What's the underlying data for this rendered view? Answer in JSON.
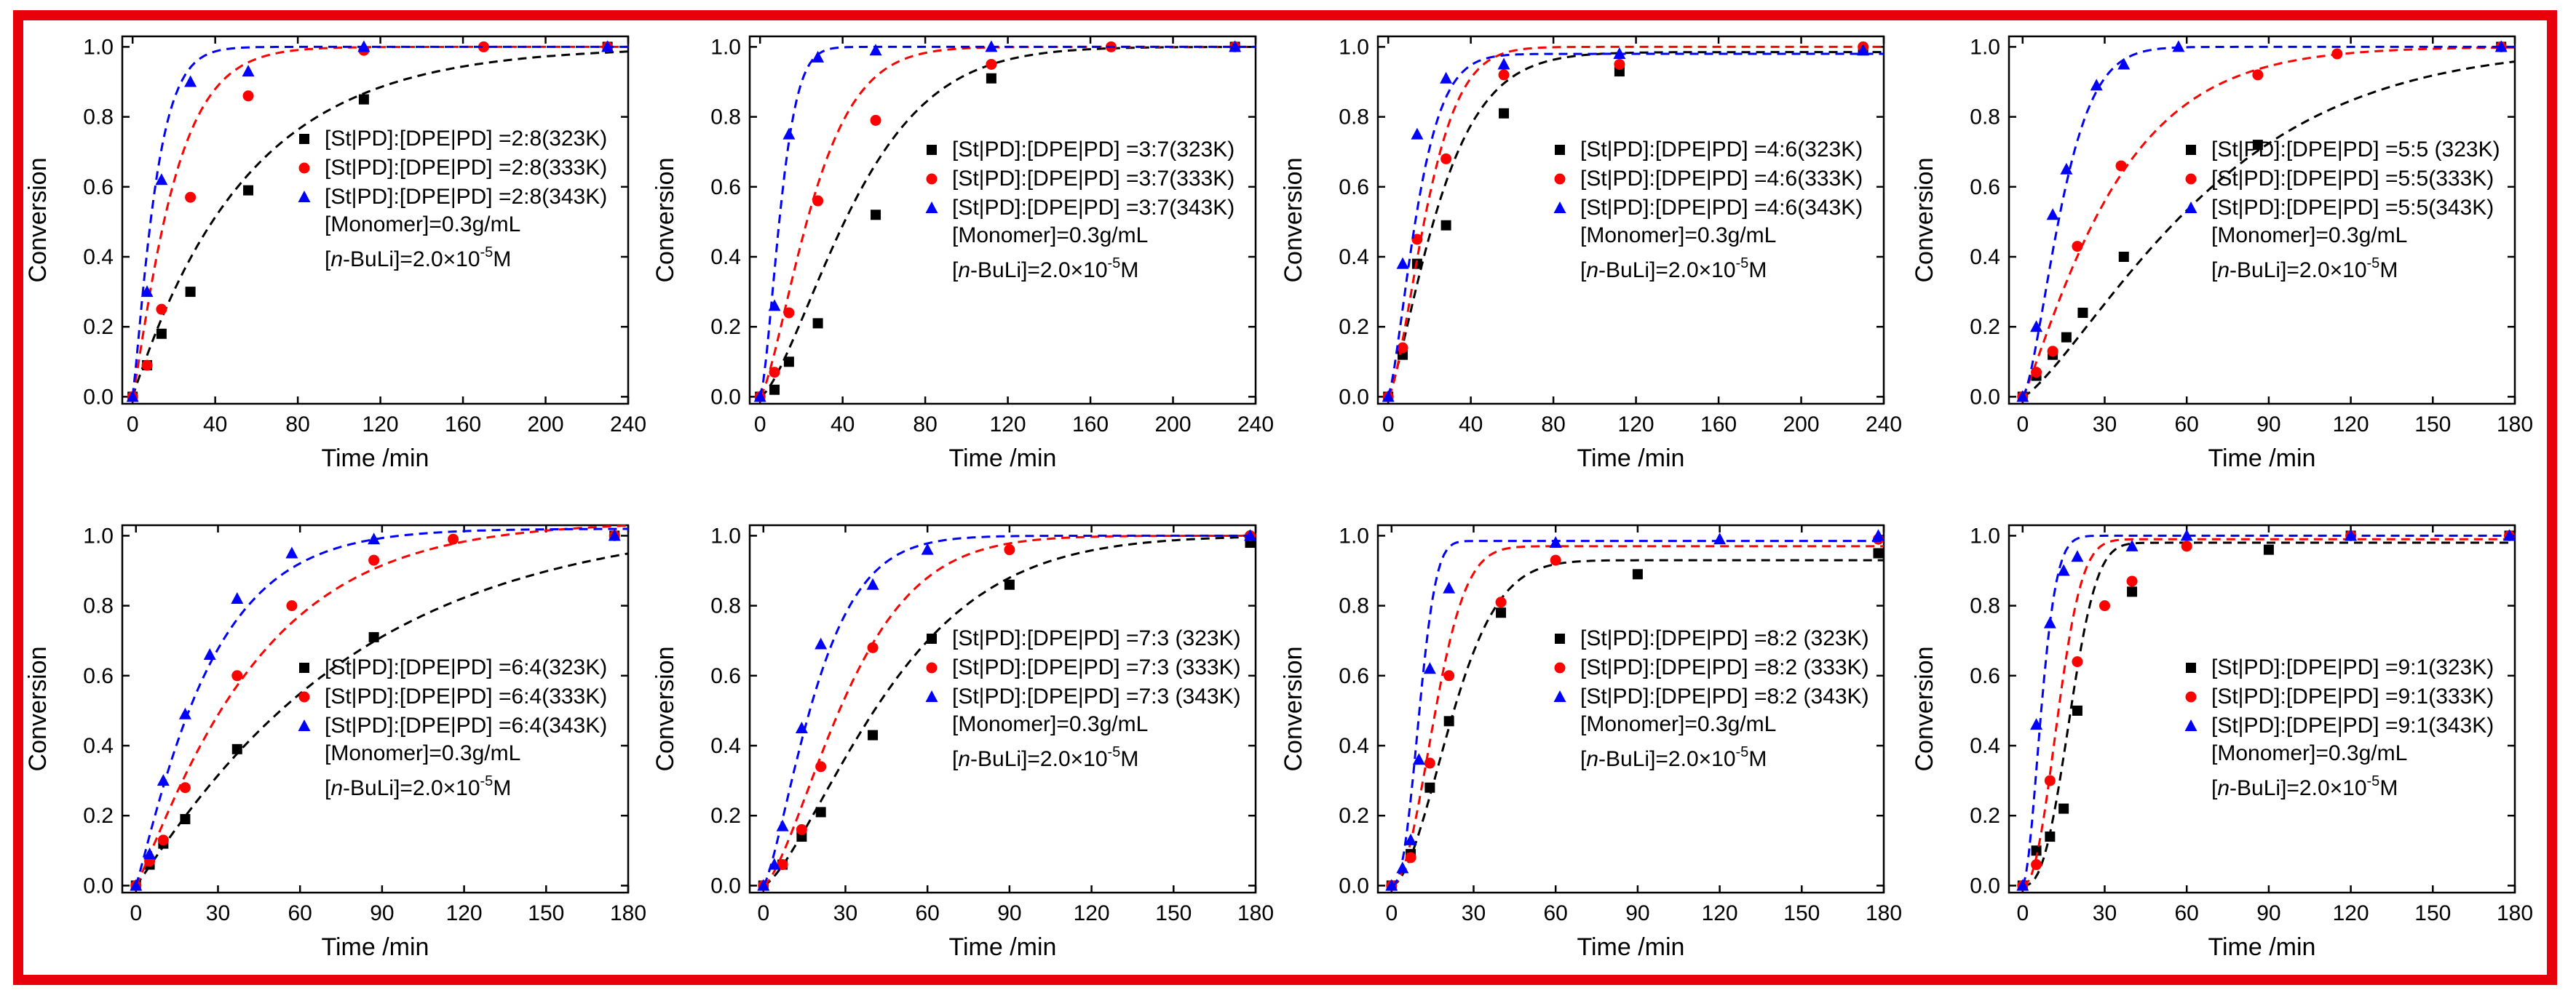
{
  "common": {
    "ylabel": "Conversion",
    "xlabel": "Time /min",
    "monomer": "[Monomer]=0.3g/mL",
    "bu_prefix": "[",
    "bu_n": "n",
    "bu_mid": "-BuLi]=2.0×10",
    "bu_exp": "-5",
    "bu_unit": "M",
    "colors": {
      "323K": "#000000",
      "333K": "#ff0000",
      "343K": "#0000ff",
      "frame": "#e8000b"
    },
    "markers": {
      "323K": "square",
      "333K": "circle",
      "343K": "triangle"
    }
  },
  "chart_data": [
    {
      "type": "scatter",
      "xlim": [
        -5,
        240
      ],
      "ylim": [
        -0.02,
        1.03
      ],
      "xticks": [
        "0",
        "40",
        "80",
        "120",
        "160",
        "200",
        "240"
      ],
      "yticks": [
        "0.0",
        "0.2",
        "0.4",
        "0.6",
        "0.8",
        "1.0"
      ],
      "legend": [
        "[St|PD]:[DPE|PD] =2:8(323K)",
        "[St|PD]:[DPE|PD] =2:8(333K)",
        "[St|PD]:[DPE|PD] =2:8(343K)"
      ],
      "series": [
        {
          "name": "323K",
          "x": [
            0,
            7,
            14,
            28,
            56,
            112,
            230
          ],
          "y": [
            0,
            0.09,
            0.18,
            0.3,
            0.59,
            0.85,
            1.0
          ],
          "fit": {
            "k": 0.018,
            "n": 1.0,
            "a": 1.0
          }
        },
        {
          "name": "333K",
          "x": [
            0,
            7,
            14,
            28,
            56,
            112,
            170,
            230
          ],
          "y": [
            0,
            0.09,
            0.25,
            0.57,
            0.86,
            0.99,
            1.0,
            1.0
          ],
          "fit": {
            "k": 0.048,
            "n": 1.15,
            "a": 1.0
          }
        },
        {
          "name": "343K",
          "x": [
            0,
            7,
            14,
            28,
            56,
            112,
            230
          ],
          "y": [
            0,
            0.3,
            0.62,
            0.9,
            0.93,
            1.0,
            1.0
          ],
          "fit": {
            "k": 0.085,
            "n": 1.2,
            "a": 1.0
          }
        }
      ]
    },
    {
      "type": "scatter",
      "xlim": [
        -5,
        240
      ],
      "ylim": [
        -0.02,
        1.03
      ],
      "xticks": [
        "0",
        "40",
        "80",
        "120",
        "160",
        "200",
        "240"
      ],
      "yticks": [
        "0.0",
        "0.2",
        "0.4",
        "0.6",
        "0.8",
        "1.0"
      ],
      "legend": [
        "[St|PD]:[DPE|PD] =3:7(323K)",
        "[St|PD]:[DPE|PD] =3:7(333K)",
        "[St|PD]:[DPE|PD] =3:7(343K)"
      ],
      "series": [
        {
          "name": "323K",
          "x": [
            0,
            7,
            14,
            28,
            56,
            112,
            230
          ],
          "y": [
            0,
            0.02,
            0.1,
            0.21,
            0.52,
            0.91,
            1.0
          ],
          "fit": {
            "k": 0.019,
            "n": 1.45,
            "a": 1.0
          }
        },
        {
          "name": "333K",
          "x": [
            0,
            7,
            14,
            28,
            56,
            112,
            170,
            230
          ],
          "y": [
            0,
            0.07,
            0.24,
            0.56,
            0.79,
            0.95,
            1.0,
            1.0
          ],
          "fit": {
            "k": 0.034,
            "n": 1.4,
            "a": 1.0
          }
        },
        {
          "name": "343K",
          "x": [
            0,
            7,
            14,
            28,
            56,
            112,
            230
          ],
          "y": [
            0,
            0.26,
            0.75,
            0.97,
            0.99,
            1.0,
            1.0
          ],
          "fit": {
            "k": 0.085,
            "n": 1.55,
            "a": 1.0
          }
        }
      ]
    },
    {
      "type": "scatter",
      "xlim": [
        -5,
        240
      ],
      "ylim": [
        -0.02,
        1.03
      ],
      "xticks": [
        "0",
        "40",
        "80",
        "120",
        "160",
        "200",
        "240"
      ],
      "yticks": [
        "0.0",
        "0.2",
        "0.4",
        "0.6",
        "0.8",
        "1.0"
      ],
      "legend": [
        "[St|PD]:[DPE|PD] =4:6(323K)",
        "[St|PD]:[DPE|PD] =4:6(333K)",
        "[St|PD]:[DPE|PD] =4:6(343K)"
      ],
      "series": [
        {
          "name": "323K",
          "x": [
            0,
            7,
            14,
            28,
            56,
            112,
            230
          ],
          "y": [
            0,
            0.12,
            0.38,
            0.49,
            0.81,
            0.93,
            0.99
          ],
          "fit": {
            "k": 0.035,
            "n": 1.3,
            "a": 0.985
          }
        },
        {
          "name": "333K",
          "x": [
            0,
            7,
            14,
            28,
            56,
            112,
            230
          ],
          "y": [
            0,
            0.14,
            0.45,
            0.68,
            0.92,
            0.95,
            1.0
          ],
          "fit": {
            "k": 0.045,
            "n": 1.5,
            "a": 1.0
          }
        },
        {
          "name": "343K",
          "x": [
            0,
            7,
            14,
            28,
            56,
            112,
            230
          ],
          "y": [
            0,
            0.38,
            0.75,
            0.91,
            0.95,
            0.98,
            0.99
          ],
          "fit": {
            "k": 0.06,
            "n": 1.4,
            "a": 0.98
          }
        }
      ]
    },
    {
      "type": "scatter",
      "xlim": [
        -5,
        180
      ],
      "ylim": [
        -0.02,
        1.03
      ],
      "xticks": [
        "0",
        "30",
        "60",
        "90",
        "120",
        "150",
        "180"
      ],
      "yticks": [
        "0.0",
        "0.2",
        "0.4",
        "0.6",
        "0.8",
        "1.0"
      ],
      "legend": [
        "[St|PD]:[DPE|PD] =5:5 (323K)",
        "[St|PD]:[DPE|PD] =5:5(333K)",
        "[St|PD]:[DPE|PD] =5:5(343K)"
      ],
      "series": [
        {
          "name": "323K",
          "x": [
            0,
            5,
            11,
            16,
            22,
            37,
            86,
            175
          ],
          "y": [
            0,
            0.06,
            0.12,
            0.17,
            0.24,
            0.4,
            0.72,
            1.0
          ],
          "fit": {
            "k": 0.0135,
            "n": 1.3,
            "a": 1.0
          }
        },
        {
          "name": "333K",
          "x": [
            0,
            5,
            11,
            20,
            36,
            86,
            115,
            175
          ],
          "y": [
            0,
            0.07,
            0.13,
            0.43,
            0.66,
            0.92,
            0.98,
            1.0
          ],
          "fit": {
            "k": 0.028,
            "n": 1.15,
            "a": 1.0
          }
        },
        {
          "name": "343K",
          "x": [
            0,
            5,
            11,
            16,
            27,
            37,
            57,
            175
          ],
          "y": [
            0,
            0.2,
            0.52,
            0.65,
            0.89,
            0.95,
            1.0,
            1.0
          ],
          "fit": {
            "k": 0.06,
            "n": 1.5,
            "a": 1.0
          }
        }
      ]
    },
    {
      "type": "scatter",
      "xlim": [
        -5,
        180
      ],
      "ylim": [
        -0.02,
        1.03
      ],
      "xticks": [
        "0",
        "30",
        "60",
        "90",
        "120",
        "150",
        "180"
      ],
      "yticks": [
        "0.0",
        "0.2",
        "0.4",
        "0.6",
        "0.8",
        "1.0"
      ],
      "legend": [
        "[St|PD]:[DPE|PD] =6:4(323K)",
        "[St|PD]:[DPE|PD] =6:4(333K)",
        "[St|PD]:[DPE|PD] =6:4(343K)"
      ],
      "series": [
        {
          "name": "323K",
          "x": [
            0,
            5,
            10,
            18,
            37,
            87,
            175
          ],
          "y": [
            0,
            0.06,
            0.12,
            0.19,
            0.39,
            0.71,
            1.0
          ],
          "fit": {
            "k": 0.0125,
            "n": 1.05,
            "a": 1.05
          }
        },
        {
          "name": "333K",
          "x": [
            0,
            5,
            10,
            18,
            37,
            57,
            87,
            116,
            175
          ],
          "y": [
            0,
            0.07,
            0.13,
            0.28,
            0.6,
            0.8,
            0.93,
            0.99,
            1.0
          ],
          "fit": {
            "k": 0.022,
            "n": 1.1,
            "a": 1.04
          }
        },
        {
          "name": "343K",
          "x": [
            0,
            5,
            10,
            18,
            27,
            37,
            57,
            87,
            175
          ],
          "y": [
            0,
            0.09,
            0.3,
            0.49,
            0.66,
            0.82,
            0.95,
            0.99,
            1.0
          ],
          "fit": {
            "k": 0.036,
            "n": 1.1,
            "a": 1.02
          }
        }
      ]
    },
    {
      "type": "scatter",
      "xlim": [
        -5,
        180
      ],
      "ylim": [
        -0.02,
        1.03
      ],
      "xticks": [
        "0",
        "30",
        "60",
        "90",
        "120",
        "150",
        "180"
      ],
      "yticks": [
        "0.0",
        "0.2",
        "0.4",
        "0.6",
        "0.8",
        "1.0"
      ],
      "legend": [
        "[St|PD]:[DPE|PD] =7:3 (323K)",
        "[St|PD]:[DPE|PD] =7:3 (333K)",
        "[St|PD]:[DPE|PD] =7:3 (343K)"
      ],
      "series": [
        {
          "name": "323K",
          "x": [
            0,
            7,
            14,
            21,
            40,
            90,
            178
          ],
          "y": [
            0,
            0.06,
            0.14,
            0.21,
            0.43,
            0.86,
            0.98
          ],
          "fit": {
            "k": 0.019,
            "n": 1.4,
            "a": 1.0
          }
        },
        {
          "name": "333K",
          "x": [
            0,
            7,
            14,
            21,
            40,
            90,
            178
          ],
          "y": [
            0,
            0.06,
            0.16,
            0.34,
            0.68,
            0.96,
            1.0
          ],
          "fit": {
            "k": 0.028,
            "n": 1.45,
            "a": 1.0
          }
        },
        {
          "name": "343K",
          "x": [
            0,
            4,
            7,
            14,
            21,
            40,
            60,
            178
          ],
          "y": [
            0,
            0.06,
            0.17,
            0.45,
            0.69,
            0.86,
            0.96,
            1.0
          ],
          "fit": {
            "k": 0.045,
            "n": 1.35,
            "a": 1.0
          }
        }
      ]
    },
    {
      "type": "scatter",
      "xlim": [
        -5,
        180
      ],
      "ylim": [
        -0.02,
        1.03
      ],
      "xticks": [
        "0",
        "30",
        "60",
        "90",
        "120",
        "150",
        "180"
      ],
      "yticks": [
        "0.0",
        "0.2",
        "0.4",
        "0.6",
        "0.8",
        "1.0"
      ],
      "legend": [
        "[St|PD]:[DPE|PD] =8:2 (323K)",
        "[St|PD]:[DPE|PD] =8:2 (333K)",
        "[St|PD]:[DPE|PD] =8:2 (343K)"
      ],
      "series": [
        {
          "name": "323K",
          "x": [
            0,
            7,
            14,
            21,
            40,
            90,
            178
          ],
          "y": [
            0,
            0.09,
            0.28,
            0.47,
            0.78,
            0.89,
            0.95
          ],
          "fit": {
            "k": 0.038,
            "n": 1.8,
            "a": 0.93
          }
        },
        {
          "name": "333K",
          "x": [
            0,
            7,
            14,
            21,
            40,
            60,
            178
          ],
          "y": [
            0,
            0.08,
            0.35,
            0.6,
            0.81,
            0.93,
            0.99
          ],
          "fit": {
            "k": 0.053,
            "n": 2.0,
            "a": 0.97
          }
        },
        {
          "name": "343K",
          "x": [
            0,
            4,
            7,
            10,
            14,
            21,
            60,
            120,
            178
          ],
          "y": [
            0,
            0.05,
            0.13,
            0.36,
            0.62,
            0.85,
            0.98,
            0.99,
            1.0
          ],
          "fit": {
            "k": 0.085,
            "n": 2.4,
            "a": 0.985
          }
        }
      ]
    },
    {
      "type": "scatter",
      "xlim": [
        -5,
        180
      ],
      "ylim": [
        -0.02,
        1.03
      ],
      "xticks": [
        "0",
        "30",
        "60",
        "90",
        "120",
        "150",
        "180"
      ],
      "yticks": [
        "0.0",
        "0.2",
        "0.4",
        "0.6",
        "0.8",
        "1.0"
      ],
      "legend": [
        "[St|PD]:[DPE|PD] =9:1(323K)",
        "[St|PD]:[DPE|PD] =9:1(333K)",
        "[St|PD]:[DPE|PD] =9:1(343K)"
      ],
      "series": [
        {
          "name": "323K",
          "x": [
            0,
            5,
            10,
            15,
            20,
            40,
            90,
            120,
            178
          ],
          "y": [
            0,
            0.1,
            0.14,
            0.22,
            0.5,
            0.84,
            0.96,
            1.0,
            1.0
          ],
          "fit": {
            "k": 0.05,
            "n": 2.6,
            "a": 0.98
          }
        },
        {
          "name": "333K",
          "x": [
            0,
            5,
            10,
            20,
            30,
            40,
            60,
            120,
            178
          ],
          "y": [
            0,
            0.06,
            0.3,
            0.64,
            0.8,
            0.87,
            0.97,
            1.0,
            1.0
          ],
          "fit": {
            "k": 0.065,
            "n": 2.2,
            "a": 0.99
          }
        },
        {
          "name": "343K",
          "x": [
            0,
            5,
            10,
            15,
            20,
            40,
            60,
            120,
            178
          ],
          "y": [
            0,
            0.46,
            0.75,
            0.9,
            0.94,
            0.97,
            1.0,
            1.0,
            1.0
          ],
          "fit": {
            "k": 0.12,
            "n": 1.8,
            "a": 1.0
          }
        }
      ]
    }
  ]
}
